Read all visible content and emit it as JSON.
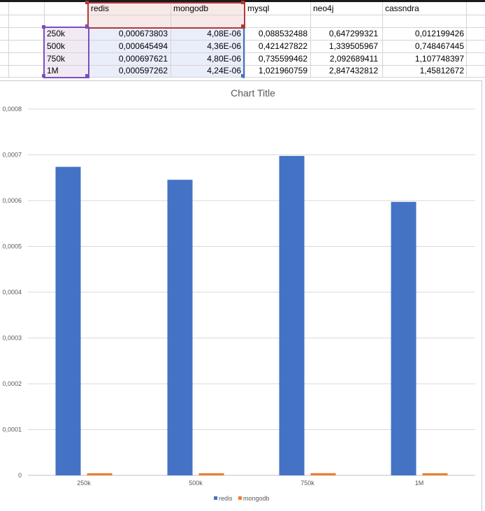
{
  "sheet": {
    "headers": [
      "redis",
      "mongodb",
      "mysql",
      "neo4j",
      "cassndra"
    ],
    "rows": [
      {
        "label": "250k",
        "values": [
          "0,000673803",
          "4,08E-06",
          "0,088532488",
          "0,647299321",
          "0,012199426"
        ]
      },
      {
        "label": "500k",
        "values": [
          "0,000645494",
          "4,36E-06",
          "0,421427822",
          "1,339505967",
          "0,748467445"
        ]
      },
      {
        "label": "750k",
        "values": [
          "0,000697621",
          "4,80E-06",
          "0,735599462",
          "2,092689411",
          "1,107748397"
        ]
      },
      {
        "label": "1M",
        "values": [
          "0,000597262",
          "4,24E-06",
          "1,021960759",
          "2,847432812",
          "1,45812672"
        ]
      }
    ],
    "colors": {
      "selection_purple": "#7a4fc0",
      "selection_red": "#b03a3a",
      "selection_blue": "#4472c4"
    }
  },
  "chart_data": {
    "type": "bar",
    "title": "Chart Title",
    "categories": [
      "250k",
      "500k",
      "750k",
      "1M"
    ],
    "series": [
      {
        "name": "redis",
        "color": "#4472c4",
        "values": [
          0.000673803,
          0.000645494,
          0.000697621,
          0.000597262
        ]
      },
      {
        "name": "mongodb",
        "color": "#ed7d31",
        "values": [
          4.08e-06,
          4.36e-06,
          4.8e-06,
          4.24e-06
        ]
      }
    ],
    "ylim": [
      0,
      0.0008
    ],
    "yticks": [
      0,
      0.0001,
      0.0002,
      0.0003,
      0.0004,
      0.0005,
      0.0006,
      0.0007,
      0.0008
    ],
    "ytick_labels": [
      "0",
      "0,0001",
      "0,0002",
      "0,0003",
      "0,0004",
      "0,0005",
      "0,0006",
      "0,0007",
      "0,0008"
    ],
    "grid": true,
    "legend": "bottom"
  }
}
